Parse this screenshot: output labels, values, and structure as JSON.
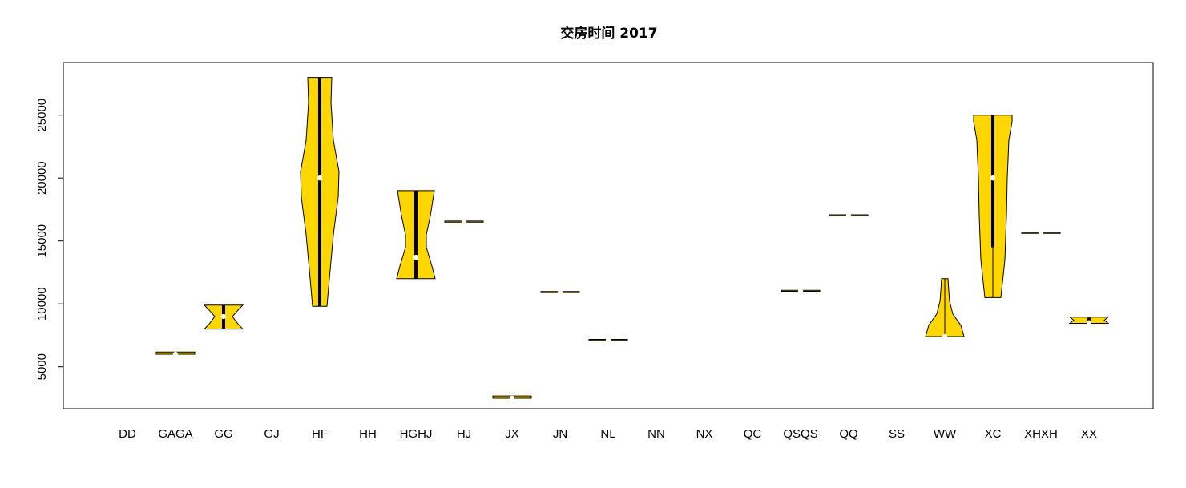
{
  "chart_data": {
    "type": "violin",
    "title": "交房时间 2017",
    "xlabel": "",
    "ylabel": "",
    "categories": [
      "DD",
      "GAGA",
      "GG",
      "GJ",
      "HF",
      "HH",
      "HGHJ",
      "HJ",
      "JX",
      "JN",
      "NL",
      "NN",
      "NX",
      "QC",
      "QSQS",
      "QQ",
      "SS",
      "WW",
      "XC",
      "XHXH",
      "XX"
    ],
    "yticks": [
      5000,
      10000,
      15000,
      20000,
      25000
    ],
    "ylim": [
      1600,
      29000
    ],
    "fill_color": "#FFD700",
    "violins": [
      {
        "category": "GAGA",
        "min": 6000,
        "q1": 6000,
        "median": 6000,
        "q3": 6000,
        "max": 6100
      },
      {
        "category": "GG",
        "min": 8000,
        "q1": 8000,
        "median": 9000,
        "q3": 9900,
        "max": 9900
      },
      {
        "category": "HF",
        "min": 9800,
        "q1": 9800,
        "median": 20000,
        "q3": 28000,
        "max": 28000
      },
      {
        "category": "HGHJ",
        "min": 12000,
        "q1": 12000,
        "median": 13700,
        "q3": 19000,
        "max": 19000
      },
      {
        "category": "HJ",
        "min": 16500,
        "q1": 16500,
        "median": 16500,
        "q3": 16500,
        "max": 16500
      },
      {
        "category": "JX",
        "min": 2500,
        "q1": 2500,
        "median": 2500,
        "q3": 2600,
        "max": 2600
      },
      {
        "category": "JN",
        "min": 10900,
        "q1": 10900,
        "median": 10900,
        "q3": 10900,
        "max": 10900
      },
      {
        "category": "NL",
        "min": 7100,
        "q1": 7100,
        "median": 7100,
        "q3": 7100,
        "max": 7100
      },
      {
        "category": "QSQS",
        "min": 11000,
        "q1": 11000,
        "median": 11000,
        "q3": 11000,
        "max": 11000
      },
      {
        "category": "QQ",
        "min": 17000,
        "q1": 17000,
        "median": 17000,
        "q3": 17000,
        "max": 17000
      },
      {
        "category": "WW",
        "min": 7400,
        "q1": 7400,
        "median": 7400,
        "q3": 7400,
        "max": 12000
      },
      {
        "category": "XC",
        "min": 10500,
        "q1": 14500,
        "median": 20000,
        "q3": 25000,
        "max": 25000
      },
      {
        "category": "XHXH",
        "min": 15600,
        "q1": 15600,
        "median": 15600,
        "q3": 15600,
        "max": 15600
      },
      {
        "category": "XX",
        "min": 8500,
        "q1": 8500,
        "median": 8500,
        "q3": 8900,
        "max": 8900
      }
    ]
  }
}
